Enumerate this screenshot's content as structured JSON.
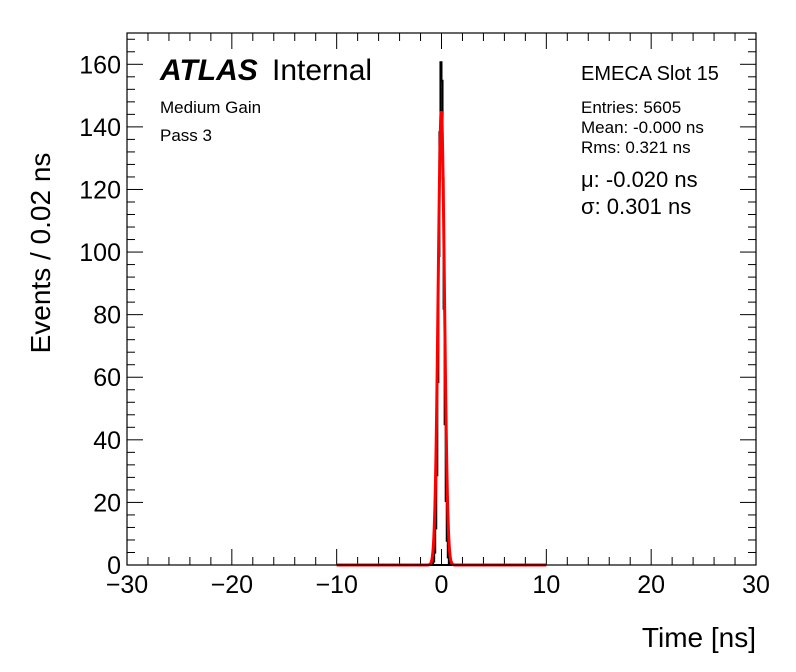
{
  "chart_data": {
    "type": "histogram",
    "xlabel": "Time [ns]",
    "ylabel": "Events / 0.02 ns",
    "xlim": [
      -30,
      30
    ],
    "ylim": [
      0,
      170
    ],
    "xticks": [
      -30,
      -20,
      -10,
      0,
      10,
      20,
      30
    ],
    "yticks": [
      0,
      20,
      40,
      60,
      80,
      100,
      120,
      140,
      160
    ],
    "x_tick_labels": [
      "−30",
      "−20",
      "−10",
      "0",
      "10",
      "20",
      "30"
    ],
    "y_tick_labels": [
      "0",
      "20",
      "40",
      "60",
      "80",
      "100",
      "120",
      "140",
      "160"
    ],
    "grid": false,
    "histogram": {
      "color": "#000000",
      "bin_width": 0.02,
      "entries": 5605,
      "mean": -0.0,
      "rms": 0.321,
      "peak_x": -0.02,
      "peak_y": 162
    },
    "fit": {
      "type": "gaussian",
      "color": "#ff0000",
      "range": [
        -10,
        10
      ],
      "mu": -0.02,
      "sigma": 0.301,
      "amplitude": 145
    },
    "annotations": {
      "experiment": "ATLAS",
      "status": "Internal",
      "gain": "Medium Gain",
      "pass": "Pass 3",
      "detector": "EMECA Slot 15",
      "entries": "Entries: 5605",
      "mean": "Mean: -0.000 ns",
      "rms": "Rms: 0.321 ns",
      "mu": "μ: -0.020 ns",
      "sigma": "σ: 0.301 ns"
    }
  }
}
